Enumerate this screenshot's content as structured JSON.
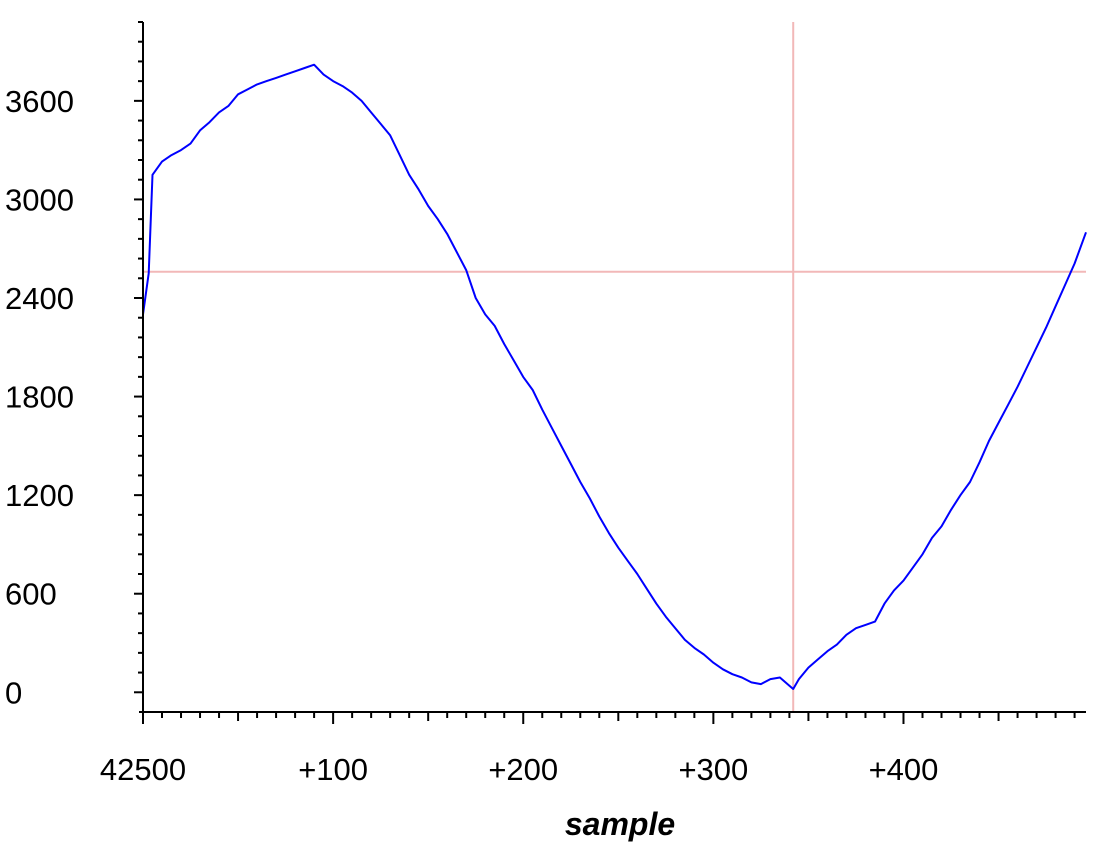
{
  "chart_data": {
    "type": "line",
    "title": "",
    "xlabel": "sample",
    "ylabel": "",
    "x_offset_label": "42500",
    "x_ticks": [
      {
        "value": 0,
        "label": "42500"
      },
      {
        "value": 100,
        "label": "+100"
      },
      {
        "value": 200,
        "label": "+200"
      },
      {
        "value": 300,
        "label": "+300"
      },
      {
        "value": 400,
        "label": "+400"
      }
    ],
    "y_ticks": [
      0,
      600,
      1200,
      1800,
      2400,
      3000,
      3600
    ],
    "xlim": [
      0,
      496
    ],
    "ylim": [
      -120,
      4080
    ],
    "grid": false,
    "legend": "none",
    "crosshair": {
      "x": 342,
      "y": 2560
    },
    "series": [
      {
        "name": "",
        "color": "#0000ff",
        "points": [
          [
            0,
            2300
          ],
          [
            3,
            2550
          ],
          [
            5,
            3150
          ],
          [
            10,
            3230
          ],
          [
            15,
            3270
          ],
          [
            20,
            3300
          ],
          [
            25,
            3340
          ],
          [
            30,
            3420
          ],
          [
            35,
            3470
          ],
          [
            40,
            3530
          ],
          [
            45,
            3570
          ],
          [
            50,
            3640
          ],
          [
            55,
            3670
          ],
          [
            60,
            3700
          ],
          [
            65,
            3720
          ],
          [
            70,
            3740
          ],
          [
            75,
            3760
          ],
          [
            80,
            3780
          ],
          [
            85,
            3800
          ],
          [
            90,
            3820
          ],
          [
            95,
            3760
          ],
          [
            100,
            3720
          ],
          [
            105,
            3690
          ],
          [
            110,
            3650
          ],
          [
            115,
            3600
          ],
          [
            120,
            3530
          ],
          [
            125,
            3460
          ],
          [
            130,
            3390
          ],
          [
            135,
            3270
          ],
          [
            140,
            3150
          ],
          [
            145,
            3060
          ],
          [
            150,
            2960
          ],
          [
            155,
            2880
          ],
          [
            160,
            2790
          ],
          [
            165,
            2680
          ],
          [
            170,
            2570
          ],
          [
            175,
            2400
          ],
          [
            180,
            2300
          ],
          [
            185,
            2230
          ],
          [
            190,
            2120
          ],
          [
            195,
            2020
          ],
          [
            200,
            1920
          ],
          [
            205,
            1840
          ],
          [
            210,
            1720
          ],
          [
            215,
            1610
          ],
          [
            220,
            1500
          ],
          [
            225,
            1390
          ],
          [
            230,
            1280
          ],
          [
            235,
            1180
          ],
          [
            240,
            1070
          ],
          [
            245,
            970
          ],
          [
            250,
            880
          ],
          [
            255,
            800
          ],
          [
            260,
            720
          ],
          [
            265,
            630
          ],
          [
            270,
            540
          ],
          [
            275,
            460
          ],
          [
            280,
            390
          ],
          [
            285,
            320
          ],
          [
            290,
            270
          ],
          [
            295,
            230
          ],
          [
            300,
            180
          ],
          [
            305,
            140
          ],
          [
            310,
            110
          ],
          [
            315,
            90
          ],
          [
            320,
            60
          ],
          [
            325,
            50
          ],
          [
            330,
            80
          ],
          [
            335,
            90
          ],
          [
            340,
            40
          ],
          [
            342,
            20
          ],
          [
            345,
            80
          ],
          [
            350,
            150
          ],
          [
            355,
            200
          ],
          [
            360,
            250
          ],
          [
            365,
            290
          ],
          [
            370,
            350
          ],
          [
            375,
            390
          ],
          [
            380,
            410
          ],
          [
            385,
            430
          ],
          [
            390,
            540
          ],
          [
            395,
            620
          ],
          [
            400,
            680
          ],
          [
            405,
            760
          ],
          [
            410,
            840
          ],
          [
            415,
            940
          ],
          [
            420,
            1010
          ],
          [
            425,
            1110
          ],
          [
            430,
            1200
          ],
          [
            435,
            1280
          ],
          [
            440,
            1400
          ],
          [
            445,
            1530
          ],
          [
            450,
            1640
          ],
          [
            455,
            1750
          ],
          [
            460,
            1860
          ],
          [
            465,
            1980
          ],
          [
            470,
            2100
          ],
          [
            475,
            2220
          ],
          [
            480,
            2350
          ],
          [
            485,
            2480
          ],
          [
            490,
            2610
          ],
          [
            496,
            2800
          ]
        ]
      }
    ]
  }
}
